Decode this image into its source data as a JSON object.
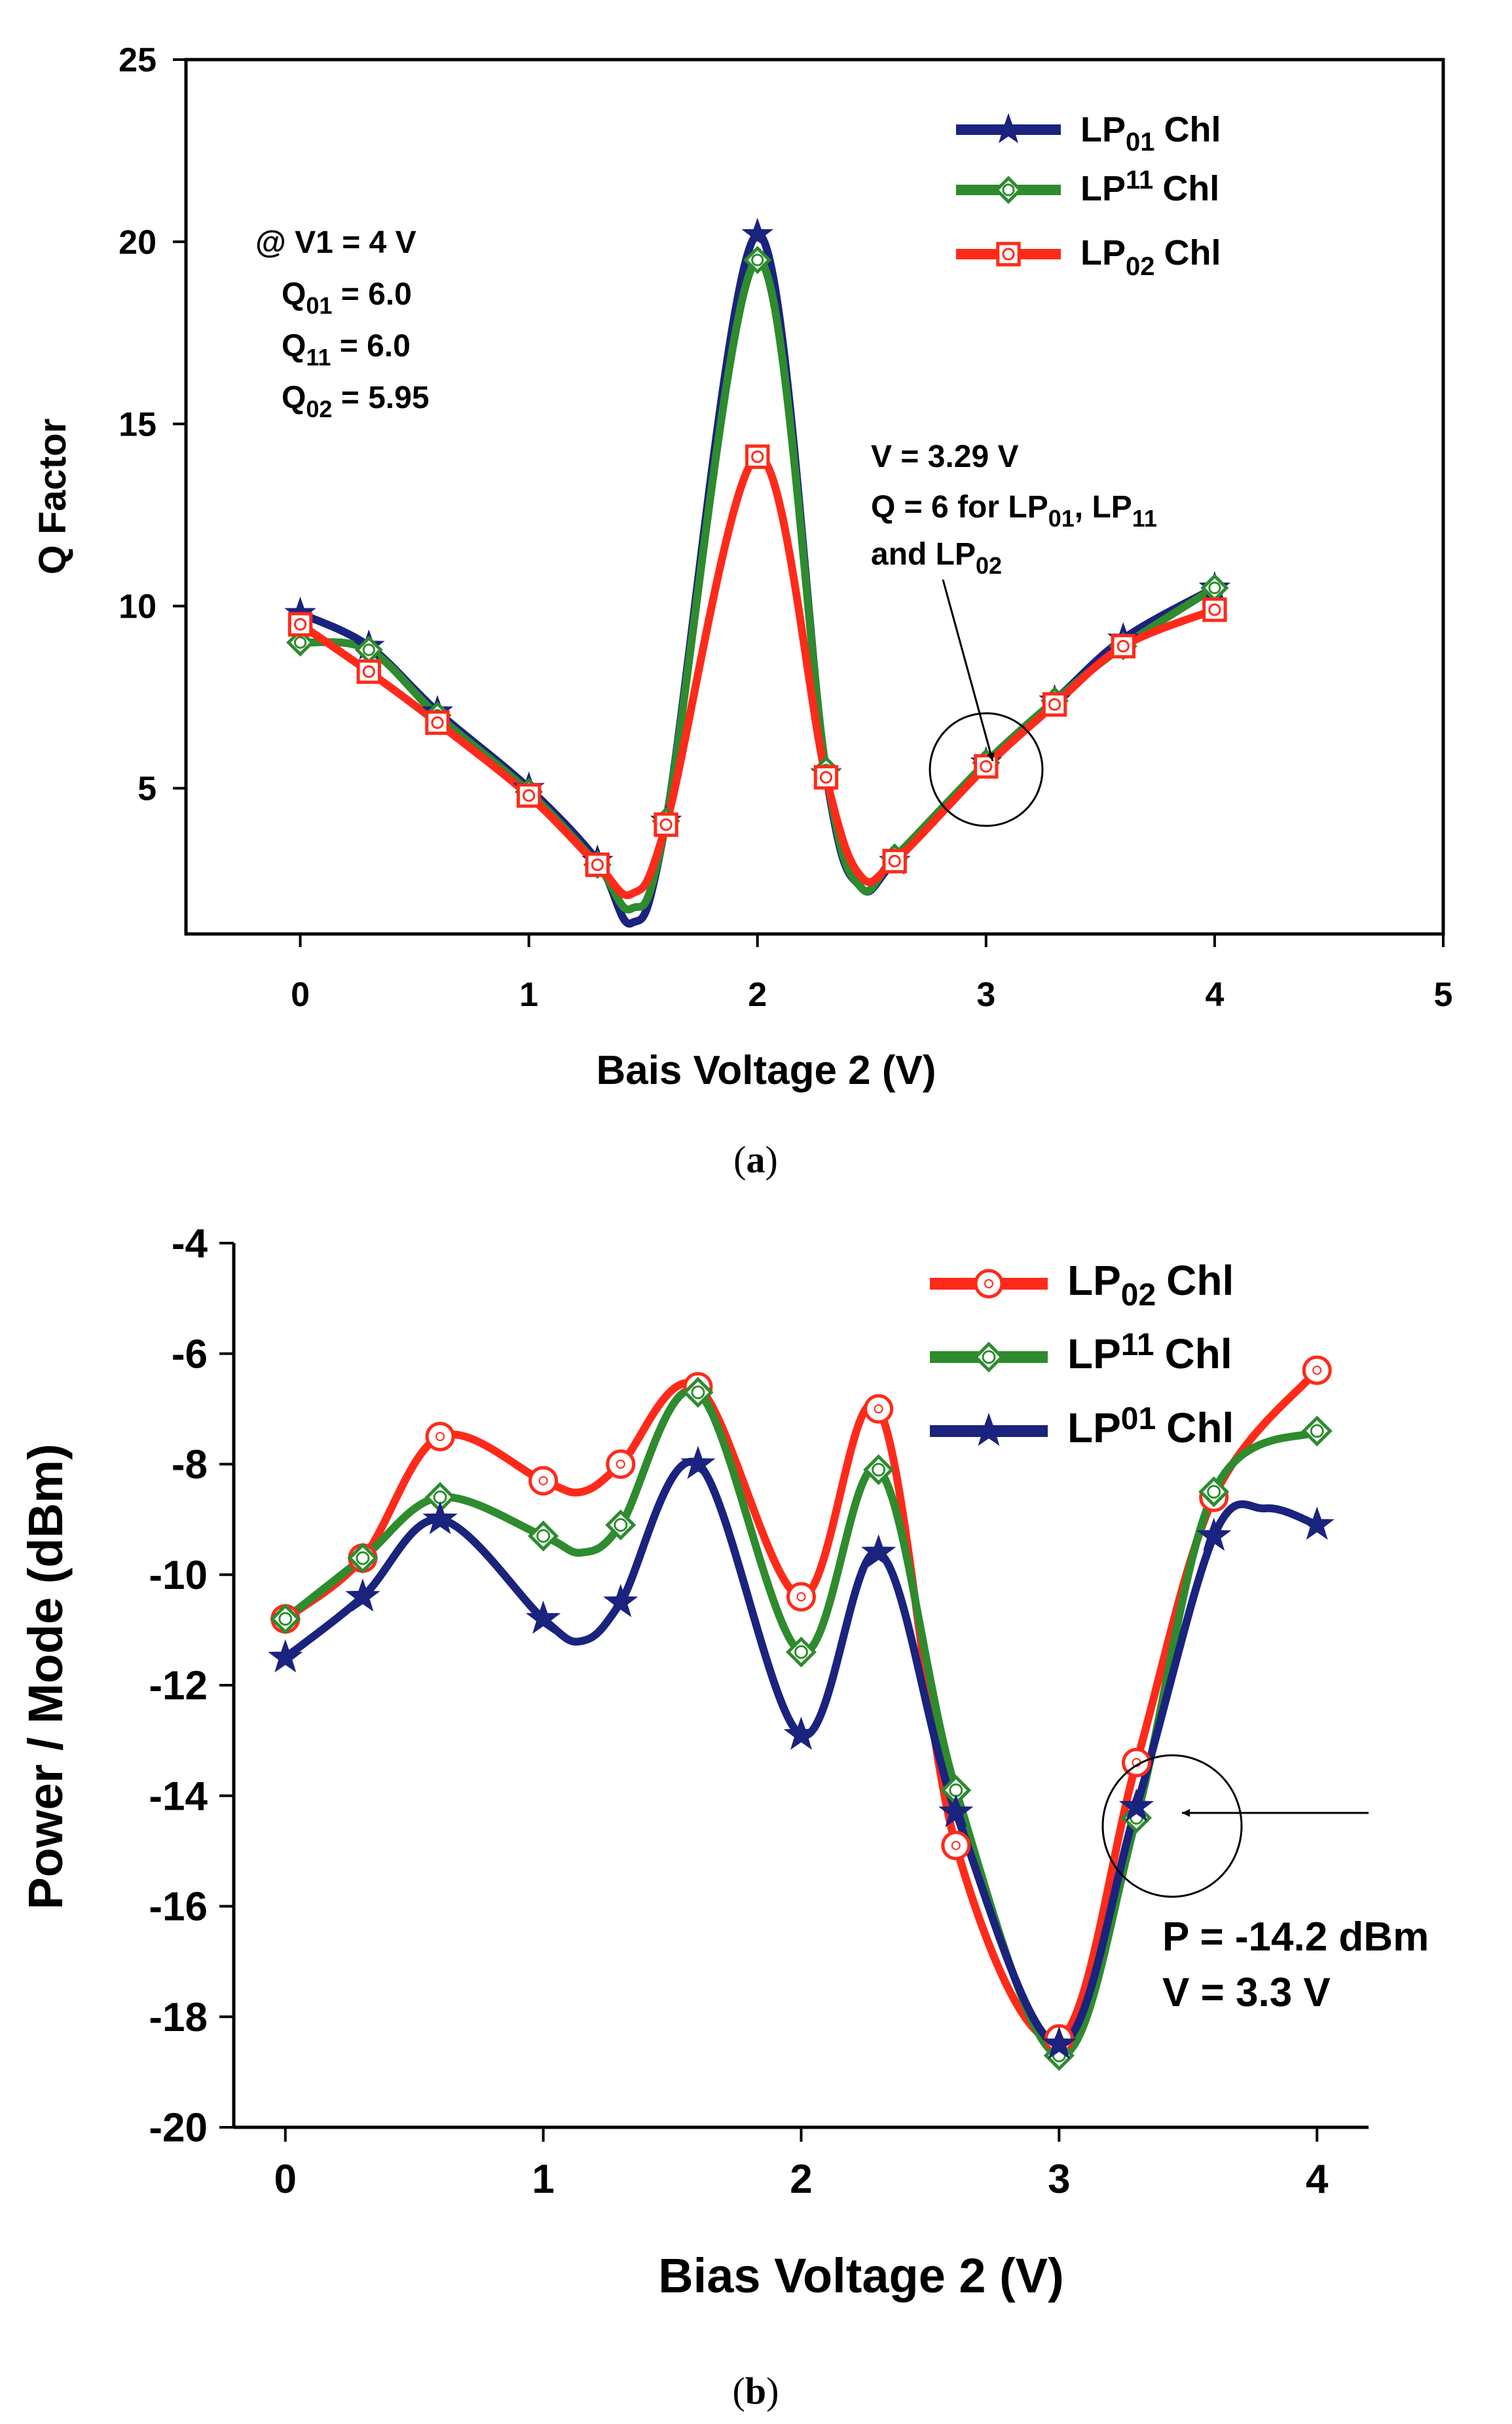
{
  "chart_data": [
    {
      "type": "line",
      "panel": "a",
      "caption_letter": "a",
      "xlabel": "Bais Voltage 2 (V)",
      "ylabel": "Q Factor",
      "xlim": [
        -0.5,
        5
      ],
      "ylim": [
        1,
        25
      ],
      "xticks": [
        0,
        1,
        2,
        3,
        4,
        5
      ],
      "yticks": [
        5,
        10,
        15,
        20,
        25
      ],
      "legend_position": "top-right",
      "series": [
        {
          "name": "LP01 Chl",
          "label_main": "LP",
          "label_sub": "01",
          "label_suffix": "Chl",
          "color": "#1a237e",
          "marker": "star",
          "x": [
            0,
            0.3,
            0.6,
            1,
            1.3,
            1.45,
            1.6,
            2,
            2.3,
            2.45,
            2.6,
            3,
            3.3,
            3.6,
            4
          ],
          "values": [
            9.8,
            8.9,
            7.1,
            5.0,
            3.0,
            1.3,
            4.1,
            20.2,
            5.4,
            2.3,
            3.0,
            5.7,
            7.4,
            9.1,
            10.5
          ],
          "marker_x": [
            0,
            0.3,
            0.6,
            1,
            1.3,
            1.6,
            2,
            2.3,
            2.6,
            3,
            3.3,
            3.6,
            4
          ],
          "marker_values": [
            9.8,
            8.9,
            7.1,
            5.0,
            3.0,
            4.1,
            20.2,
            5.4,
            3.0,
            5.7,
            7.4,
            9.1,
            10.5
          ]
        },
        {
          "name": "LP11 Chl",
          "label_main": "LP",
          "label_sub": "11",
          "label_suffix": "Chl",
          "color": "#2e8b2e",
          "marker": "diamond",
          "x": [
            0,
            0.3,
            0.6,
            1,
            1.3,
            1.45,
            1.6,
            2,
            2.3,
            2.45,
            2.6,
            3,
            3.3,
            3.6,
            4
          ],
          "values": [
            9.0,
            8.8,
            7.0,
            4.9,
            2.9,
            1.7,
            4.1,
            19.5,
            5.5,
            2.3,
            3.1,
            5.7,
            7.4,
            8.9,
            10.5
          ],
          "marker_x": [
            0,
            0.3,
            0.6,
            1,
            1.3,
            1.6,
            2,
            2.3,
            2.6,
            3,
            3.3,
            3.6,
            4
          ],
          "marker_values": [
            9.0,
            8.8,
            7.0,
            4.9,
            2.9,
            4.1,
            19.5,
            5.5,
            3.1,
            5.7,
            7.4,
            8.9,
            10.5
          ]
        },
        {
          "name": "LP02 Chl",
          "label_main": "LP",
          "label_sub": "02",
          "label_suffix": "Chl",
          "color": "#ff2a1a",
          "marker": "circle-square",
          "x": [
            0,
            0.3,
            0.6,
            1,
            1.3,
            1.45,
            1.6,
            2,
            2.3,
            2.45,
            2.6,
            3,
            3.3,
            3.6,
            4
          ],
          "values": [
            9.5,
            8.2,
            6.8,
            4.8,
            2.9,
            2.1,
            4.0,
            14.1,
            5.3,
            2.6,
            3.0,
            5.6,
            7.3,
            8.9,
            9.9
          ],
          "marker_x": [
            0,
            0.3,
            0.6,
            1,
            1.3,
            1.6,
            2,
            2.3,
            2.6,
            3,
            3.3,
            3.6,
            4
          ],
          "marker_values": [
            9.5,
            8.2,
            6.8,
            4.8,
            2.9,
            4.0,
            14.1,
            5.3,
            3.0,
            5.6,
            7.3,
            8.9,
            9.9
          ]
        }
      ],
      "annotations": {
        "left_box": {
          "line1": "@ V1 = 4 V",
          "lines": [
            {
              "main": "Q",
              "sub": "01",
              "rest": " = 6.0"
            },
            {
              "main": "Q",
              "sub": "11",
              "rest": " = 6.0"
            },
            {
              "main": "Q",
              "sub": "02",
              "rest": " = 5.95"
            }
          ]
        },
        "right_box": {
          "line1": "V = 3.29 V",
          "line2_a": "Q = 6 for LP",
          "line2_sub1": "01",
          "line2_b": ", LP",
          "line2_sub2": "11",
          "line3_a": "and LP",
          "line3_sub": "02"
        },
        "circle_x": 3,
        "circle_y": 5.7
      }
    },
    {
      "type": "line",
      "panel": "b",
      "caption_letter": "b",
      "xlabel": "Bias Voltage 2 (V)",
      "ylabel": "Power / Mode (dBm)",
      "xlim": [
        -0.2,
        4.2
      ],
      "ylim": [
        -20,
        -4
      ],
      "xticks": [
        0,
        1,
        2,
        3,
        4
      ],
      "yticks": [
        -20,
        -18,
        -16,
        -14,
        -12,
        -10,
        -8,
        -6,
        -4
      ],
      "legend_position": "top-right",
      "series": [
        {
          "name": "LP02 Chl",
          "label_main": "LP",
          "label_sub": "02",
          "label_suffix": "Chl",
          "color": "#ff2a1a",
          "marker": "circle",
          "x": [
            0,
            0.3,
            0.6,
            1,
            1.15,
            1.3,
            1.6,
            2,
            2.3,
            2.6,
            3,
            3.3,
            3.6,
            4
          ],
          "values": [
            -10.8,
            -9.7,
            -7.5,
            -8.3,
            -8.5,
            -8.0,
            -6.6,
            -10.4,
            -7.0,
            -14.9,
            -18.4,
            -13.4,
            -8.6,
            -6.3
          ],
          "marker_x": [
            0,
            0.3,
            0.6,
            1,
            1.3,
            1.6,
            2,
            2.3,
            2.6,
            3,
            3.3,
            3.6,
            4
          ],
          "marker_values": [
            -10.8,
            -9.7,
            -7.5,
            -8.3,
            -8.0,
            -6.6,
            -10.4,
            -7.0,
            -14.9,
            -18.4,
            -13.4,
            -8.6,
            -6.3
          ]
        },
        {
          "name": "LP11 Chl",
          "label_main": "LP",
          "label_sub": "11",
          "label_suffix": "Chl",
          "color": "#2e8b2e",
          "marker": "diamond",
          "x": [
            0,
            0.3,
            0.6,
            1,
            1.15,
            1.3,
            1.6,
            2,
            2.3,
            2.6,
            3,
            3.3,
            3.6,
            4
          ],
          "values": [
            -10.8,
            -9.7,
            -8.6,
            -9.3,
            -9.6,
            -9.1,
            -6.7,
            -11.4,
            -8.1,
            -13.9,
            -18.7,
            -14.4,
            -8.5,
            -7.4
          ],
          "marker_x": [
            0,
            0.3,
            0.6,
            1,
            1.3,
            1.6,
            2,
            2.3,
            2.6,
            3,
            3.3,
            3.6,
            4
          ],
          "marker_values": [
            -10.8,
            -9.7,
            -8.6,
            -9.3,
            -9.1,
            -6.7,
            -11.4,
            -8.1,
            -13.9,
            -18.7,
            -14.4,
            -8.5,
            -7.4
          ]
        },
        {
          "name": "LP01 Chl",
          "label_main": "LP",
          "label_sub": "01",
          "label_suffix": "Chl",
          "color": "#1a237e",
          "marker": "star",
          "x": [
            0,
            0.3,
            0.6,
            1,
            1.15,
            1.3,
            1.6,
            2,
            2.3,
            2.6,
            3,
            3.3,
            3.6,
            3.8,
            4
          ],
          "values": [
            -11.5,
            -10.4,
            -9.0,
            -10.8,
            -11.2,
            -10.5,
            -8.0,
            -12.9,
            -9.6,
            -14.3,
            -18.5,
            -14.2,
            -9.3,
            -8.8,
            -9.1
          ],
          "marker_x": [
            0,
            0.3,
            0.6,
            1,
            1.3,
            1.6,
            2,
            2.3,
            2.6,
            3,
            3.3,
            3.6,
            4
          ],
          "marker_values": [
            -11.5,
            -10.4,
            -9.0,
            -10.8,
            -10.5,
            -8.0,
            -12.9,
            -9.6,
            -14.3,
            -18.5,
            -14.2,
            -9.3,
            -9.1
          ]
        }
      ],
      "annotations": {
        "line1": "P = -14.2 dBm",
        "line2": "V = 3.3 V",
        "circle_x": 3.33,
        "circle_y": -14.6,
        "arrow_target_x": 3.33,
        "arrow_target_y": -14.4
      }
    }
  ]
}
